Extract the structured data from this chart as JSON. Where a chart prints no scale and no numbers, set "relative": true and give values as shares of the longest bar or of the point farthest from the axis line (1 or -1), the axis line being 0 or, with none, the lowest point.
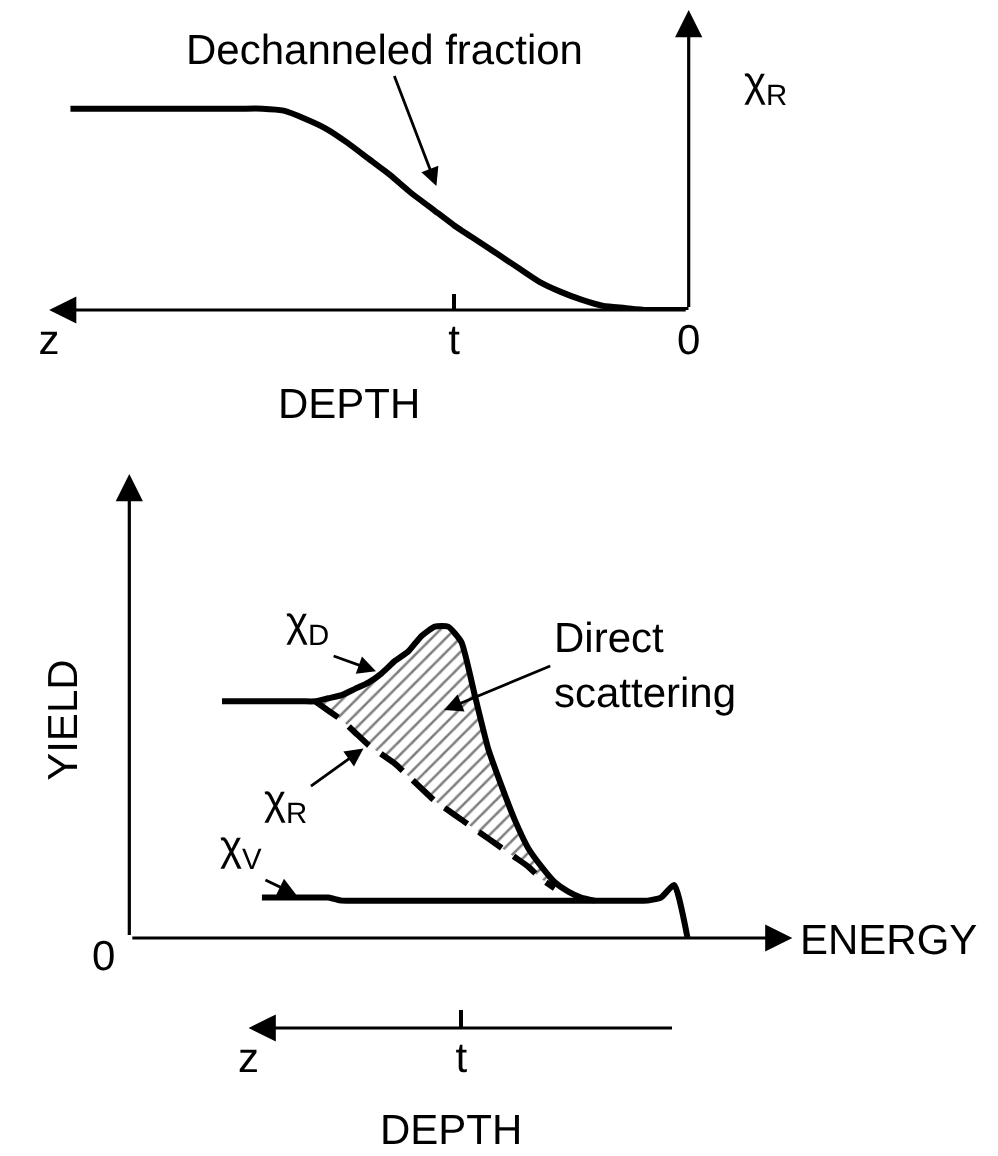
{
  "chart_data": [
    {
      "type": "line",
      "relative": true,
      "xlabel": "DEPTH",
      "ylabel": "χ$_{R}$",
      "categories": [
        "z",
        null,
        null,
        null,
        null,
        null,
        null,
        null,
        null,
        null,
        null,
        null,
        null,
        null,
        null,
        null,
        null,
        null,
        null,
        "t",
        null,
        null,
        null,
        null,
        null,
        null,
        null,
        null,
        null,
        null,
        "0"
      ],
      "series": [
        {
          "color": "#000000",
          "values": [
            null,
            1.0,
            1.0,
            1.0,
            1.0,
            1.0,
            1.0,
            1.0,
            1.0,
            1.0,
            1.0,
            0.99,
            0.95,
            0.9,
            0.83,
            0.75,
            0.67,
            0.58,
            0.5,
            0.42,
            0.35,
            0.28,
            0.21,
            0.14,
            0.09,
            0.05,
            0.02,
            0.01,
            0,
            0,
            0
          ]
        }
      ],
      "annotations": [
        "Dechanneled fraction"
      ]
    },
    {
      "type": "line",
      "relative": true,
      "xlabel": "ENERGY",
      "ylabel": "YIELD",
      "x2label": "DEPTH",
      "categories": [
        null,
        null,
        null,
        null,
        null,
        null,
        null,
        null,
        "z",
        null,
        null,
        null,
        null,
        null,
        null,
        null,
        null,
        null,
        null,
        null,
        null,
        null,
        null,
        null,
        "t",
        null,
        null,
        null,
        null,
        null,
        null,
        null,
        null,
        null,
        null,
        null,
        null,
        null,
        null,
        null,
        null,
        null,
        null,
        null,
        null,
        null,
        null,
        null,
        null
      ],
      "series": [
        {
          "name": "χ$_{D}$",
          "color": "#000000",
          "values": [
            null,
            null,
            null,
            null,
            null,
            null,
            0.76,
            0.76,
            0.76,
            0.76,
            0.76,
            0.76,
            0.76,
            0.76,
            0.77,
            0.78,
            0.8,
            0.82,
            0.85,
            0.89,
            0.92,
            0.97,
            1.0,
            1.0,
            0.95,
            0.78,
            0.61,
            0.49,
            0.38,
            0.29,
            0.23,
            0.18,
            0.15,
            0.13,
            0.12,
            null,
            null,
            null,
            null,
            null,
            null,
            null,
            null,
            null,
            null,
            null,
            null,
            null,
            null
          ],
          "lower": [
            null,
            null,
            null,
            null,
            null,
            null,
            null,
            null,
            null,
            null,
            null,
            null,
            null,
            0.76,
            0.73,
            0.7,
            0.66,
            0.62,
            0.59,
            0.56,
            0.52,
            0.48,
            0.44,
            0.41,
            0.38,
            0.35,
            0.32,
            0.29,
            0.26,
            0.23,
            0.19,
            0.16,
            null,
            null,
            null,
            null,
            null,
            null,
            null,
            null,
            null,
            null,
            null,
            null,
            null,
            null,
            null,
            null,
            null
          ],
          "upper": [
            null,
            null,
            null,
            null,
            null,
            null,
            null,
            null,
            null,
            null,
            null,
            null,
            null,
            0.76,
            0.77,
            0.78,
            0.8,
            0.82,
            0.85,
            0.89,
            0.92,
            0.97,
            1.0,
            1.0,
            0.95,
            0.78,
            0.61,
            0.49,
            0.38,
            0.29,
            0.23,
            0.18,
            null,
            null,
            null,
            null,
            null,
            null,
            null,
            null,
            null,
            null,
            null,
            null,
            null,
            null,
            null,
            null,
            null
          ]
        },
        {
          "name": "χ$_{R}$",
          "color": "#000000",
          "line_style": "dashed",
          "values": [
            null,
            null,
            null,
            null,
            null,
            null,
            null,
            null,
            null,
            null,
            null,
            null,
            null,
            0.76,
            0.73,
            0.7,
            0.66,
            0.62,
            0.59,
            0.56,
            0.52,
            0.48,
            0.44,
            0.41,
            0.38,
            0.35,
            0.32,
            0.29,
            0.26,
            0.23,
            0.19,
            0.16,
            null,
            null,
            null,
            null,
            null,
            null,
            null,
            null,
            null,
            null,
            null,
            null,
            null,
            null,
            null,
            null,
            null
          ]
        },
        {
          "name": "χ$_{V}$",
          "color": "#000000",
          "values": [
            null,
            null,
            null,
            null,
            null,
            null,
            null,
            null,
            null,
            0.13,
            0.13,
            0.13,
            0.13,
            0.13,
            0.13,
            0.12,
            0.12,
            0.12,
            0.12,
            0.12,
            0.12,
            0.12,
            0.12,
            0.12,
            0.12,
            0.12,
            0.12,
            0.12,
            0.12,
            0.12,
            0.12,
            0.12,
            0.12,
            0.12,
            0.12,
            0.12,
            0.12,
            0.12,
            0.12,
            0.13,
            0.17,
            0,
            null,
            null,
            null,
            null,
            null,
            null,
            null
          ]
        }
      ],
      "annotations": [
        "0",
        "Direct\nscattering"
      ]
    }
  ]
}
